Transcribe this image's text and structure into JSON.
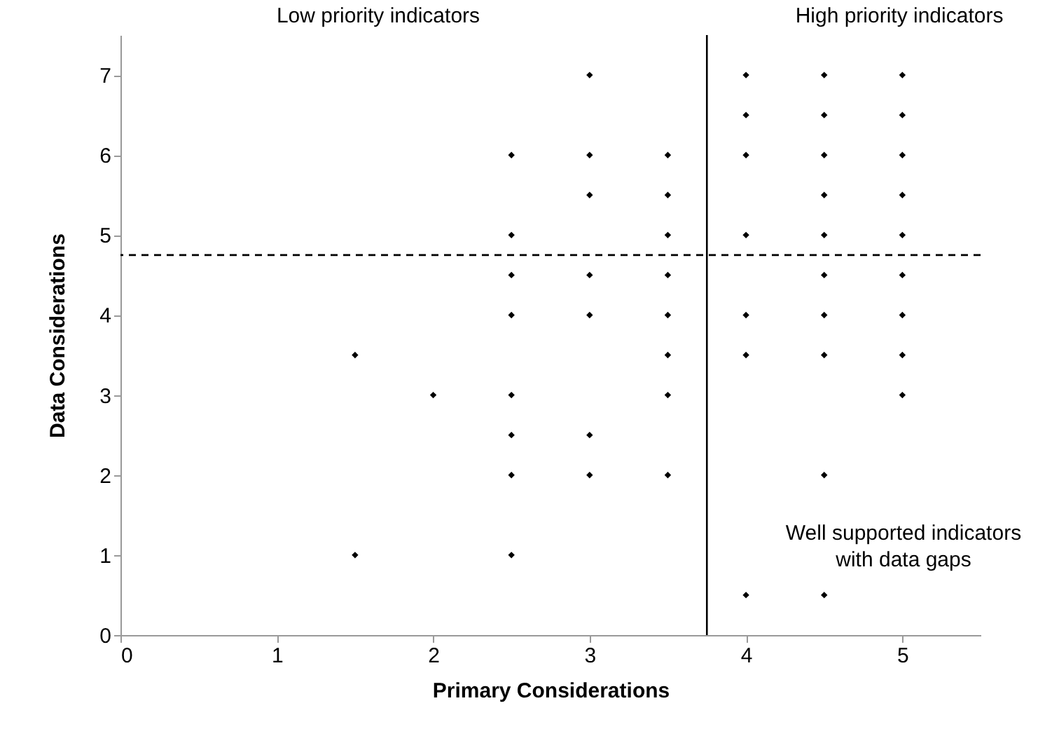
{
  "chart_data": {
    "type": "scatter",
    "xlabel": "Primary Considerations",
    "ylabel": "Data Considerations",
    "annotations": [
      "Low priority indicators",
      "High priority indicators",
      "Well supported indicators\nwith data gaps"
    ],
    "series": [
      {
        "color": "#000000",
        "x": [
          1.5,
          1.5,
          2,
          2.5,
          2.5,
          2.5,
          2.5,
          2.5,
          2.5,
          2.5,
          2.5,
          3,
          3,
          3,
          3,
          3,
          3,
          3,
          3.5,
          3.5,
          3.5,
          3.5,
          3.5,
          3.5,
          3.5,
          3.5,
          4,
          4,
          4,
          4,
          4,
          4,
          4,
          4.5,
          4.5,
          4.5,
          4.5,
          4.5,
          4.5,
          4.5,
          4.5,
          4.5,
          4.5,
          5,
          5,
          5,
          5,
          5,
          5,
          5,
          5,
          5
        ],
        "values": [
          3.5,
          1,
          3,
          6,
          5,
          4.5,
          4,
          3,
          2.5,
          2,
          1,
          7,
          6,
          5.5,
          4.5,
          4,
          2.5,
          2,
          6,
          5.5,
          5,
          4.5,
          4,
          3.5,
          3,
          2,
          7,
          6.5,
          6,
          5,
          4,
          3.5,
          0.5,
          7,
          6.5,
          6,
          5.5,
          5,
          4.5,
          4,
          3.5,
          2,
          0.5,
          7,
          6.5,
          6,
          5.5,
          5,
          4.5,
          4,
          3.5,
          3
        ]
      }
    ],
    "xlim": [
      0,
      5.5
    ],
    "xticks": [
      0,
      1,
      2,
      3,
      4,
      5
    ],
    "ylim": [
      0,
      7.5
    ],
    "yticks": [
      0,
      1,
      2,
      3,
      4,
      5,
      6,
      7
    ],
    "ref_lines": [
      {
        "axis": "x",
        "value": 3.75,
        "color": "#000000",
        "line_style": "solid"
      },
      {
        "axis": "y",
        "value": 4.75,
        "color": "#000000",
        "line_style": "dashed"
      }
    ],
    "marker": "diamond",
    "grid": false
  }
}
